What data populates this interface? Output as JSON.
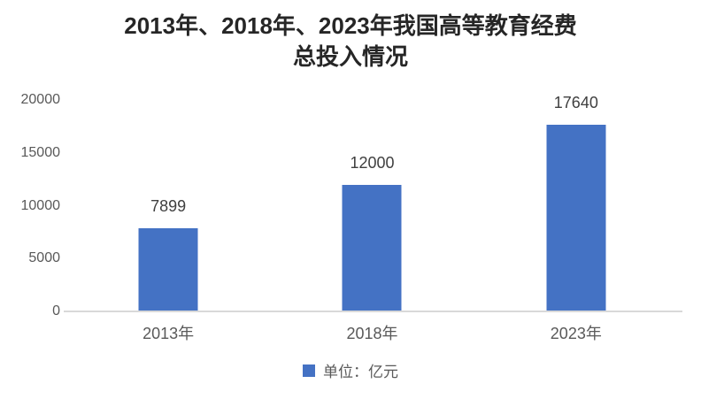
{
  "header": {
    "title_line1": "2013年、2018年、2023年我国高等教育经费",
    "title_line2": "总投入情况"
  },
  "legend": {
    "label": "单位：亿元"
  },
  "chart_data": {
    "type": "bar",
    "title": "2013年、2018年、2023年我国高等教育经费总投入情况",
    "categories": [
      "2013年",
      "2018年",
      "2023年"
    ],
    "values": [
      7899,
      12000,
      17640
    ],
    "data_labels": [
      "7899",
      "12000",
      "17640"
    ],
    "legend": "单位：亿元",
    "unit": "亿元",
    "xlabel": "",
    "ylabel": "",
    "ylim": [
      0,
      20000
    ],
    "yticks": [
      0,
      5000,
      10000,
      15000,
      20000
    ],
    "grid": false,
    "legend_position": "bottom",
    "bar_color": "#4472C4",
    "axis_line_color": "#d9d9d9",
    "title_color": "#262626",
    "tick_label_color": "#595959"
  }
}
